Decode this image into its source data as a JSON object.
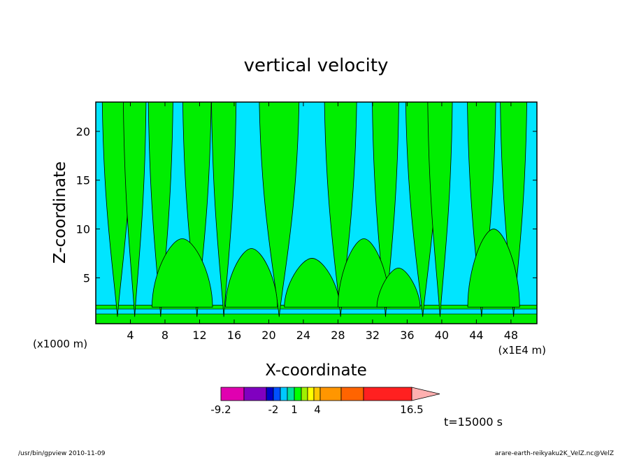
{
  "chart_data": {
    "type": "heatmap",
    "title": "vertical velocity",
    "xlabel": "X-coordinate",
    "ylabel": "Z-coordinate",
    "x_unit_left": "(x1000 m)",
    "x_unit_right": "(x1E4 m)",
    "xlim": [
      0,
      51
    ],
    "ylim": [
      0.3,
      23
    ],
    "x_ticks": [
      4,
      8,
      12,
      16,
      20,
      24,
      28,
      32,
      36,
      40,
      44,
      48
    ],
    "x_tick_labels": [
      "4",
      "8",
      "12",
      "16",
      "20",
      "24",
      "28",
      "32",
      "36",
      "40",
      "44",
      "48"
    ],
    "y_ticks": [
      5,
      10,
      15,
      20
    ],
    "y_tick_labels": [
      "5",
      "10",
      "15",
      "20"
    ],
    "fill_colors": {
      "negative": "#00e5ff",
      "positive": "#00ee00"
    },
    "updraft_x": [
      2.5,
      4.5,
      7.5,
      11.7,
      14.8,
      21.2,
      28.3,
      33.5,
      37.8,
      39.8,
      44.6,
      48.3
    ],
    "colorbar": {
      "min_label": "-9.2",
      "max_label": "16.5",
      "tick_labels": [
        "-9.2",
        "-2",
        "1",
        "4",
        "16.5"
      ],
      "colors": [
        "#e000b0",
        "#8000c0",
        "#0000c8",
        "#0050ff",
        "#00c8ff",
        "#00e0a0",
        "#00ff00",
        "#a0f000",
        "#ffff00",
        "#ffc800",
        "#ff9600",
        "#ff6400",
        "#ff2020",
        "#ff8080",
        "#ffb0b0"
      ]
    },
    "time_label": "t=15000 s"
  },
  "footer": {
    "left": "/usr/bin/gpview   2010-11-09",
    "right": "arare-earth-reikyaku2K_VelZ.nc@VelZ"
  }
}
